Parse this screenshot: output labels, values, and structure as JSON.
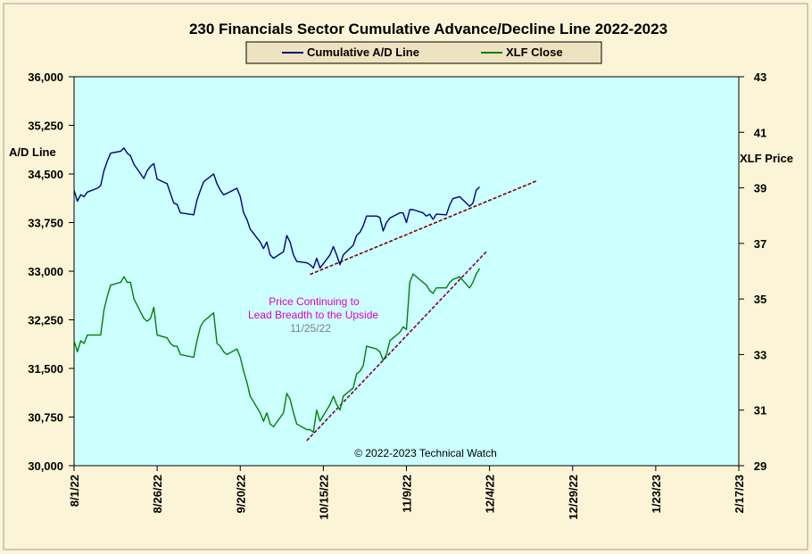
{
  "chart_data": {
    "type": "line",
    "title": "230 Financials Sector Cumulative Advance/Decline Line 2022-2023",
    "ylabel_left": "A/D Line",
    "ylabel_right": "XLF Price",
    "y_left_range": [
      30000,
      36000
    ],
    "y_right_range": [
      29,
      43
    ],
    "y_left_ticks": [
      "30,000",
      "30,750",
      "31,500",
      "32,250",
      "33,000",
      "33,750",
      "34,500",
      "35,250",
      "36,000"
    ],
    "y_right_ticks": [
      "29",
      "31",
      "33",
      "35",
      "37",
      "39",
      "41",
      "43"
    ],
    "x_ticks": [
      "8/1/22",
      "8/26/22",
      "9/20/22",
      "10/15/22",
      "11/9/22",
      "12/4/22",
      "12/29/22",
      "1/23/23",
      "2/17/23"
    ],
    "x_start": "2022-08-01",
    "x_end": "2023-02-17",
    "grid": false,
    "legend_position": "top-center",
    "series": [
      {
        "name": "Cumulative A/D Line",
        "color": "#000080",
        "axis": "left",
        "points": [
          [
            "2022-08-01",
            34250
          ],
          [
            "2022-08-02",
            34080
          ],
          [
            "2022-08-03",
            34180
          ],
          [
            "2022-08-04",
            34150
          ],
          [
            "2022-08-05",
            34220
          ],
          [
            "2022-08-08",
            34280
          ],
          [
            "2022-08-09",
            34320
          ],
          [
            "2022-08-10",
            34550
          ],
          [
            "2022-08-11",
            34700
          ],
          [
            "2022-08-12",
            34820
          ],
          [
            "2022-08-15",
            34850
          ],
          [
            "2022-08-16",
            34900
          ],
          [
            "2022-08-17",
            34820
          ],
          [
            "2022-08-18",
            34780
          ],
          [
            "2022-08-19",
            34650
          ],
          [
            "2022-08-22",
            34430
          ],
          [
            "2022-08-23",
            34550
          ],
          [
            "2022-08-24",
            34620
          ],
          [
            "2022-08-25",
            34660
          ],
          [
            "2022-08-26",
            34420
          ],
          [
            "2022-08-29",
            34350
          ],
          [
            "2022-08-30",
            34200
          ],
          [
            "2022-08-31",
            34050
          ],
          [
            "2022-09-01",
            34030
          ],
          [
            "2022-09-02",
            33900
          ],
          [
            "2022-09-06",
            33870
          ],
          [
            "2022-09-07",
            34100
          ],
          [
            "2022-09-08",
            34250
          ],
          [
            "2022-09-09",
            34380
          ],
          [
            "2022-09-12",
            34500
          ],
          [
            "2022-09-13",
            34350
          ],
          [
            "2022-09-14",
            34250
          ],
          [
            "2022-09-15",
            34180
          ],
          [
            "2022-09-16",
            34200
          ],
          [
            "2022-09-19",
            34280
          ],
          [
            "2022-09-20",
            34150
          ],
          [
            "2022-09-21",
            33900
          ],
          [
            "2022-09-22",
            33800
          ],
          [
            "2022-09-23",
            33650
          ],
          [
            "2022-09-26",
            33450
          ],
          [
            "2022-09-27",
            33350
          ],
          [
            "2022-09-28",
            33450
          ],
          [
            "2022-09-29",
            33250
          ],
          [
            "2022-09-30",
            33200
          ],
          [
            "2022-10-03",
            33300
          ],
          [
            "2022-10-04",
            33550
          ],
          [
            "2022-10-05",
            33450
          ],
          [
            "2022-10-06",
            33250
          ],
          [
            "2022-10-07",
            33150
          ],
          [
            "2022-10-10",
            33130
          ],
          [
            "2022-10-11",
            33100
          ],
          [
            "2022-10-12",
            33050
          ],
          [
            "2022-10-13",
            33200
          ],
          [
            "2022-10-14",
            33050
          ],
          [
            "2022-10-17",
            33250
          ],
          [
            "2022-10-18",
            33380
          ],
          [
            "2022-10-19",
            33250
          ],
          [
            "2022-10-20",
            33100
          ],
          [
            "2022-10-21",
            33250
          ],
          [
            "2022-10-24",
            33400
          ],
          [
            "2022-10-25",
            33550
          ],
          [
            "2022-10-26",
            33600
          ],
          [
            "2022-10-27",
            33700
          ],
          [
            "2022-10-28",
            33850
          ],
          [
            "2022-10-31",
            33850
          ],
          [
            "2022-11-01",
            33830
          ],
          [
            "2022-11-02",
            33620
          ],
          [
            "2022-11-03",
            33750
          ],
          [
            "2022-11-04",
            33820
          ],
          [
            "2022-11-07",
            33900
          ],
          [
            "2022-11-08",
            33900
          ],
          [
            "2022-11-09",
            33750
          ],
          [
            "2022-11-10",
            33950
          ],
          [
            "2022-11-11",
            33950
          ],
          [
            "2022-11-14",
            33900
          ],
          [
            "2022-11-15",
            33850
          ],
          [
            "2022-11-16",
            33880
          ],
          [
            "2022-11-17",
            33800
          ],
          [
            "2022-11-18",
            33880
          ],
          [
            "2022-11-21",
            33870
          ],
          [
            "2022-11-22",
            34020
          ],
          [
            "2022-11-23",
            34120
          ],
          [
            "2022-11-25",
            34150
          ],
          [
            "2022-11-28",
            34000
          ],
          [
            "2022-11-29",
            34050
          ],
          [
            "2022-11-30",
            34250
          ],
          [
            "2022-12-01",
            34300
          ]
        ]
      },
      {
        "name": "XLF Close",
        "color": "#008000",
        "axis": "right",
        "points": [
          [
            "2022-08-01",
            33.5
          ],
          [
            "2022-08-02",
            33.1
          ],
          [
            "2022-08-03",
            33.5
          ],
          [
            "2022-08-04",
            33.4
          ],
          [
            "2022-08-05",
            33.7
          ],
          [
            "2022-08-08",
            33.7
          ],
          [
            "2022-08-09",
            33.7
          ],
          [
            "2022-08-10",
            34.6
          ],
          [
            "2022-08-11",
            35.1
          ],
          [
            "2022-08-12",
            35.5
          ],
          [
            "2022-08-15",
            35.6
          ],
          [
            "2022-08-16",
            35.8
          ],
          [
            "2022-08-17",
            35.6
          ],
          [
            "2022-08-18",
            35.6
          ],
          [
            "2022-08-19",
            35.0
          ],
          [
            "2022-08-22",
            34.3
          ],
          [
            "2022-08-23",
            34.2
          ],
          [
            "2022-08-24",
            34.3
          ],
          [
            "2022-08-25",
            34.7
          ],
          [
            "2022-08-26",
            33.7
          ],
          [
            "2022-08-29",
            33.6
          ],
          [
            "2022-08-30",
            33.4
          ],
          [
            "2022-08-31",
            33.3
          ],
          [
            "2022-09-01",
            33.3
          ],
          [
            "2022-09-02",
            33.0
          ],
          [
            "2022-09-06",
            32.9
          ],
          [
            "2022-09-07",
            33.5
          ],
          [
            "2022-09-08",
            34.0
          ],
          [
            "2022-09-09",
            34.2
          ],
          [
            "2022-09-12",
            34.5
          ],
          [
            "2022-09-13",
            33.4
          ],
          [
            "2022-09-14",
            33.3
          ],
          [
            "2022-09-15",
            33.1
          ],
          [
            "2022-09-16",
            33.0
          ],
          [
            "2022-09-19",
            33.2
          ],
          [
            "2022-09-20",
            32.9
          ],
          [
            "2022-09-21",
            32.4
          ],
          [
            "2022-09-22",
            32.0
          ],
          [
            "2022-09-23",
            31.5
          ],
          [
            "2022-09-26",
            30.9
          ],
          [
            "2022-09-27",
            30.6
          ],
          [
            "2022-09-28",
            30.9
          ],
          [
            "2022-09-29",
            30.5
          ],
          [
            "2022-09-30",
            30.4
          ],
          [
            "2022-10-03",
            30.9
          ],
          [
            "2022-10-04",
            31.6
          ],
          [
            "2022-10-05",
            31.4
          ],
          [
            "2022-10-06",
            30.9
          ],
          [
            "2022-10-07",
            30.5
          ],
          [
            "2022-10-10",
            30.3
          ],
          [
            "2022-10-11",
            30.3
          ],
          [
            "2022-10-12",
            30.2
          ],
          [
            "2022-10-13",
            31.0
          ],
          [
            "2022-10-14",
            30.6
          ],
          [
            "2022-10-17",
            31.2
          ],
          [
            "2022-10-18",
            31.5
          ],
          [
            "2022-10-19",
            31.2
          ],
          [
            "2022-10-20",
            31.0
          ],
          [
            "2022-10-21",
            31.5
          ],
          [
            "2022-10-24",
            31.8
          ],
          [
            "2022-10-25",
            32.3
          ],
          [
            "2022-10-26",
            32.4
          ],
          [
            "2022-10-27",
            32.6
          ],
          [
            "2022-10-28",
            33.3
          ],
          [
            "2022-10-31",
            33.2
          ],
          [
            "2022-11-01",
            33.1
          ],
          [
            "2022-11-02",
            32.8
          ],
          [
            "2022-11-03",
            33.0
          ],
          [
            "2022-11-04",
            33.5
          ],
          [
            "2022-11-07",
            33.8
          ],
          [
            "2022-11-08",
            34.0
          ],
          [
            "2022-11-09",
            33.9
          ],
          [
            "2022-11-10",
            35.6
          ],
          [
            "2022-11-11",
            35.9
          ],
          [
            "2022-11-14",
            35.6
          ],
          [
            "2022-11-15",
            35.5
          ],
          [
            "2022-11-16",
            35.3
          ],
          [
            "2022-11-17",
            35.2
          ],
          [
            "2022-11-18",
            35.4
          ],
          [
            "2022-11-21",
            35.4
          ],
          [
            "2022-11-22",
            35.6
          ],
          [
            "2022-11-23",
            35.7
          ],
          [
            "2022-11-25",
            35.8
          ],
          [
            "2022-11-28",
            35.4
          ],
          [
            "2022-11-29",
            35.6
          ],
          [
            "2022-11-30",
            35.9
          ],
          [
            "2022-12-01",
            36.1
          ]
        ]
      }
    ],
    "trendlines": [
      {
        "axis": "left",
        "from": [
          "2022-10-11",
          32950
        ],
        "to": [
          "2022-12-18",
          34390
        ],
        "color": "#800000",
        "style": "dashed"
      },
      {
        "axis": "right",
        "from": [
          "2022-10-10",
          29.9
        ],
        "to": [
          "2022-12-03",
          36.7
        ],
        "color": "#800040",
        "style": "dashed"
      }
    ],
    "annotations": [
      {
        "text": "Price Continuing to",
        "color": "#e000c0"
      },
      {
        "text": "Lead Breadth to the Upside",
        "color": "#e000c0"
      },
      {
        "text": "11/25/22",
        "color": "#808080"
      }
    ],
    "copyright": "© 2022-2023  Technical Watch"
  }
}
